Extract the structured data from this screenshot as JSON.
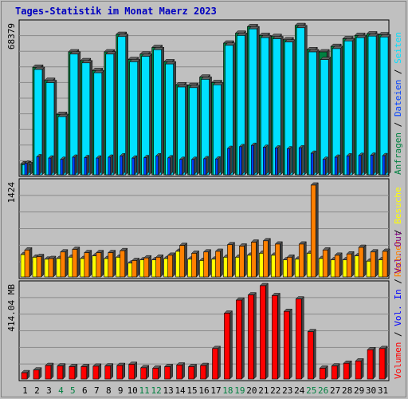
{
  "title": "Tages-Statistik im Monat Maerz 2023",
  "colors": {
    "background": "#c0c0c0",
    "title": "#0000c0",
    "anfragen": "#008040",
    "seiten": "#00e0ff",
    "dateien": "#0040ff",
    "besuche": "#ffff00",
    "rechner": "#ff8000",
    "vol_out": "#800080",
    "vol_in": "#0000ff",
    "volumen": "#ff0000",
    "weekend_label": "#008040"
  },
  "chart_data": [
    {
      "type": "bar",
      "panel": "requests",
      "ymax_label": "68379",
      "ymax": 68379,
      "ylim": [
        0,
        68379
      ],
      "categories": [
        "1",
        "2",
        "3",
        "4",
        "5",
        "6",
        "7",
        "8",
        "9",
        "10",
        "11",
        "12",
        "13",
        "14",
        "15",
        "16",
        "17",
        "18",
        "19",
        "20",
        "21",
        "22",
        "23",
        "24",
        "25",
        "26",
        "27",
        "28",
        "29",
        "30",
        "31"
      ],
      "legend": [
        {
          "text": "Anfragen",
          "color_key": "anfragen"
        },
        {
          "text": "Dateien",
          "color_key": "dateien"
        },
        {
          "text": "Seiten",
          "color_key": "seiten"
        }
      ],
      "series": [
        {
          "name": "Anfragen",
          "values": [
            5000,
            49000,
            43000,
            27500,
            56000,
            52000,
            47500,
            56000,
            64000,
            52500,
            55000,
            58000,
            51500,
            41000,
            40700,
            44500,
            42000,
            60000,
            64500,
            67500,
            63500,
            63000,
            61500,
            68000,
            57000,
            56000,
            58500,
            62000,
            63500,
            64200,
            63800
          ]
        },
        {
          "name": "Seiten",
          "values": [
            4600,
            48000,
            42000,
            26500,
            55000,
            51000,
            46500,
            55000,
            63000,
            51500,
            54000,
            57000,
            50500,
            40000,
            39700,
            43500,
            41000,
            59000,
            63500,
            66500,
            62500,
            62000,
            60500,
            67000,
            56000,
            52500,
            57500,
            61000,
            62500,
            63200,
            62800
          ]
        },
        {
          "name": "Dateien",
          "values": [
            5200,
            8200,
            7600,
            7000,
            8000,
            7800,
            7600,
            8000,
            8600,
            7600,
            7800,
            8600,
            7700,
            7000,
            7000,
            7300,
            7200,
            12000,
            12800,
            13400,
            12500,
            12200,
            11800,
            12300,
            9800,
            7000,
            8000,
            8600,
            8800,
            8900,
            8700
          ]
        }
      ]
    },
    {
      "type": "bar",
      "panel": "visits",
      "ymax_label": "1424",
      "ymax": 1424,
      "ylim": [
        0,
        1424
      ],
      "categories": [
        "1",
        "2",
        "3",
        "4",
        "5",
        "6",
        "7",
        "8",
        "9",
        "10",
        "11",
        "12",
        "13",
        "14",
        "15",
        "16",
        "17",
        "18",
        "19",
        "20",
        "21",
        "22",
        "23",
        "24",
        "25",
        "26",
        "27",
        "28",
        "29",
        "30",
        "31"
      ],
      "legend": [
        {
          "text": "Rechner",
          "color_key": "rechner"
        },
        {
          "text": "Besuche",
          "color_key": "besuche"
        }
      ],
      "series": [
        {
          "name": "Besuche",
          "values": [
            340,
            300,
            270,
            280,
            300,
            280,
            320,
            280,
            300,
            210,
            260,
            260,
            280,
            390,
            270,
            250,
            270,
            300,
            300,
            330,
            360,
            330,
            260,
            270,
            360,
            280,
            260,
            260,
            320,
            240,
            260
          ]
        },
        {
          "name": "Rechner",
          "values": [
            410,
            310,
            280,
            380,
            420,
            370,
            370,
            370,
            400,
            250,
            290,
            300,
            330,
            480,
            360,
            380,
            390,
            490,
            470,
            530,
            550,
            500,
            300,
            500,
            1400,
            410,
            330,
            350,
            450,
            380,
            390
          ]
        }
      ]
    },
    {
      "type": "bar",
      "panel": "volume",
      "ymax_label": "414.04 MB",
      "ymax": 414.04,
      "ylim": [
        0,
        414.04
      ],
      "categories": [
        "1",
        "2",
        "3",
        "4",
        "5",
        "6",
        "7",
        "8",
        "9",
        "10",
        "11",
        "12",
        "13",
        "14",
        "15",
        "16",
        "17",
        "18",
        "19",
        "20",
        "21",
        "22",
        "23",
        "24",
        "25",
        "26",
        "27",
        "28",
        "29",
        "30",
        "31"
      ],
      "legend": [
        {
          "text": "Volumen",
          "color_key": "volumen"
        },
        {
          "text": "Vol. In",
          "color_key": "vol_in"
        },
        {
          "text": "Vol. Out",
          "color_key": "vol_out"
        }
      ],
      "series": [
        {
          "name": "Volumen",
          "values": [
            28,
            40,
            60,
            58,
            55,
            55,
            57,
            58,
            60,
            65,
            50,
            48,
            55,
            62,
            55,
            60,
            135,
            292,
            350,
            373,
            414,
            370,
            300,
            355,
            210,
            48,
            58,
            70,
            80,
            130,
            135
          ]
        }
      ]
    }
  ],
  "weekend_days": [
    "4",
    "5",
    "11",
    "12",
    "18",
    "19",
    "25",
    "26"
  ]
}
